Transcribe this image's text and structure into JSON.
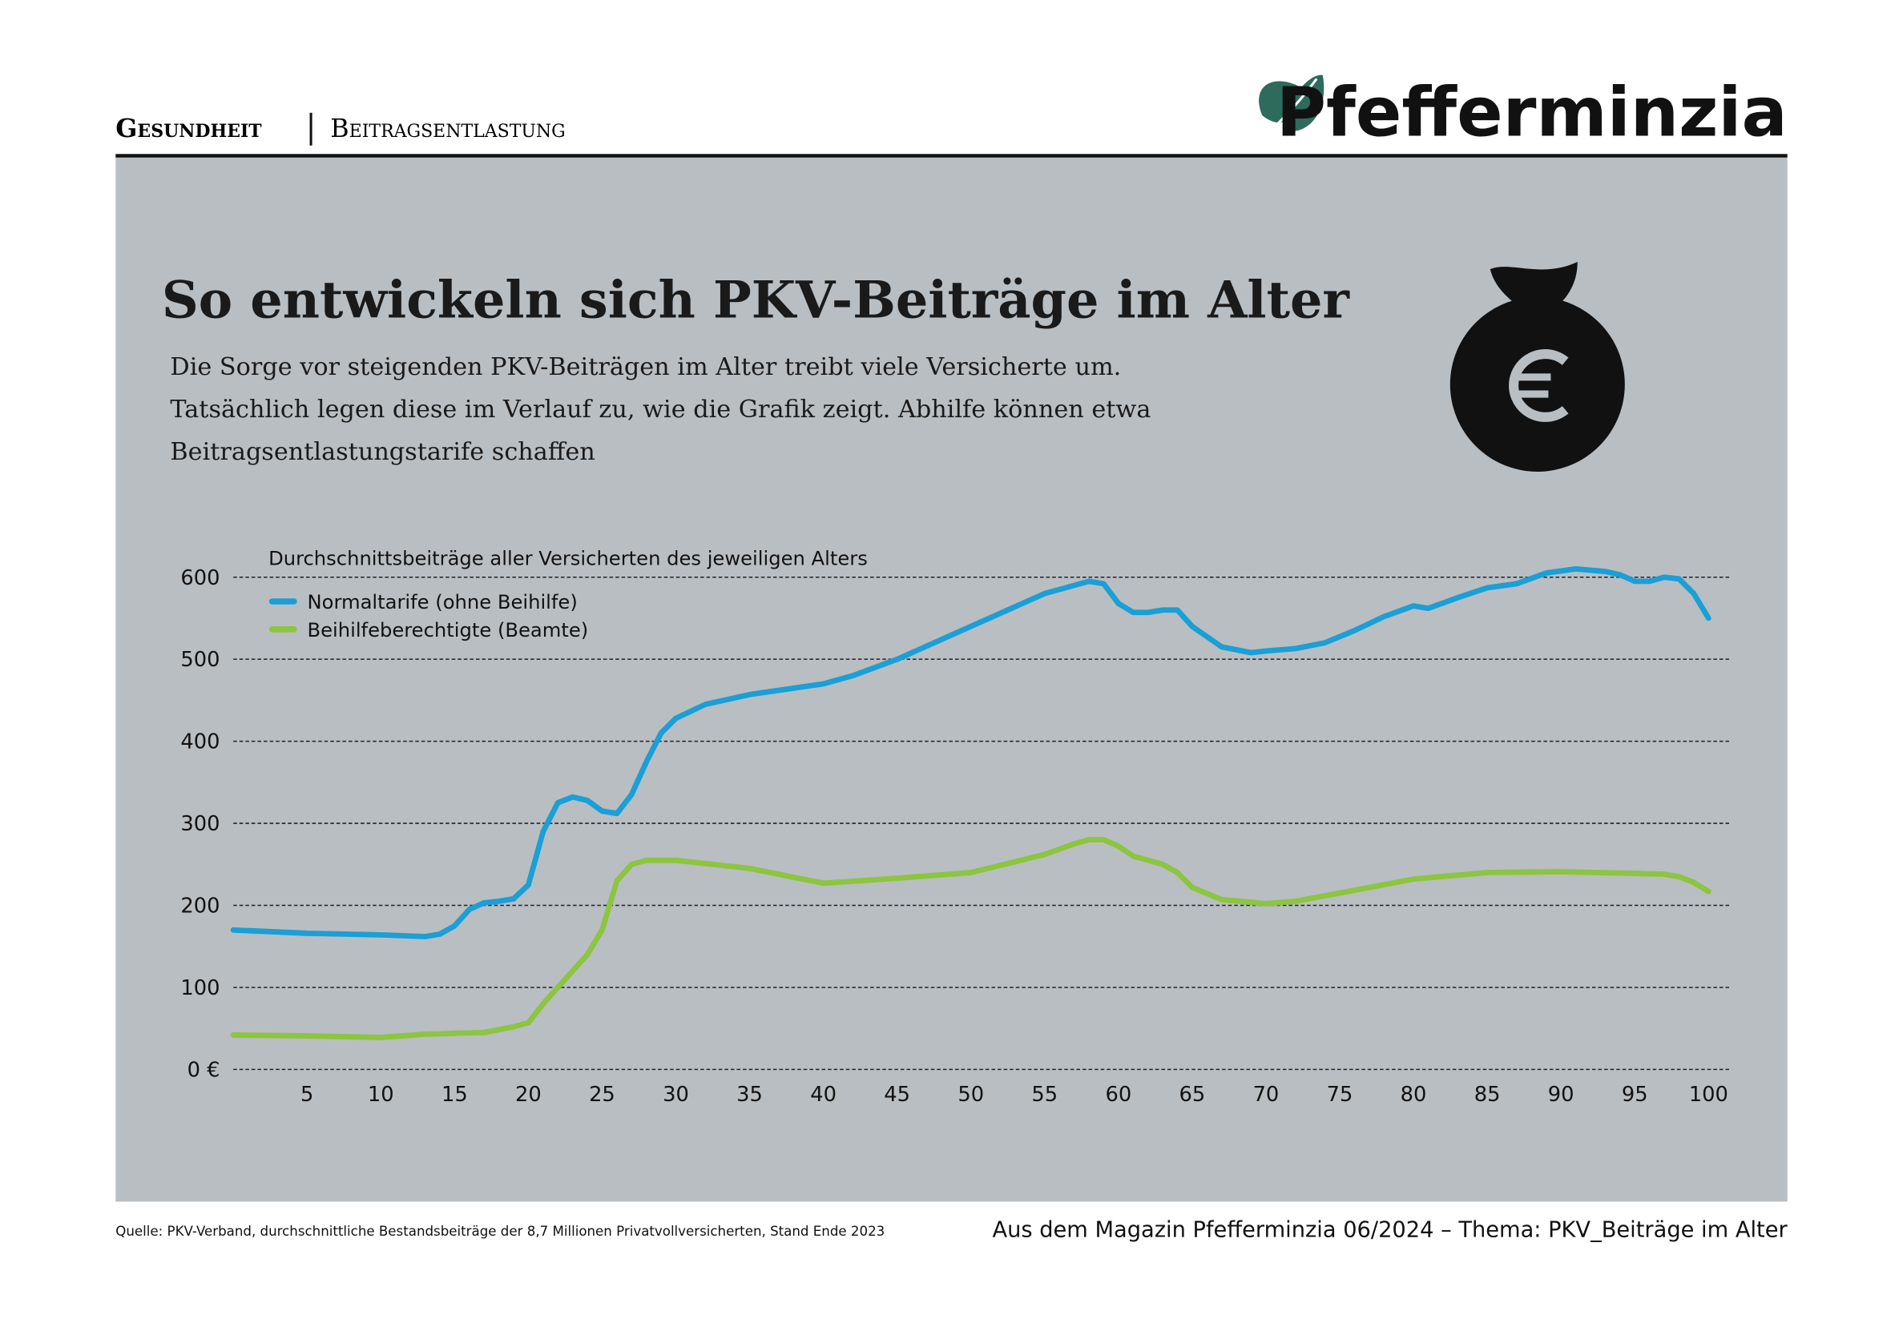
{
  "header": {
    "section": "Gesundheit",
    "topic": "Beitragsentlastung",
    "logo": "Pfefferminzia"
  },
  "chart_data": {
    "type": "line",
    "title": "So entwickeln sich PKV-Beiträge im Alter",
    "subtitle": [
      "Die Sorge vor steigenden PKV-Beiträgen im Alter treibt viele Versicherte um.",
      "Tatsächlich legen diese im Verlauf zu, wie die Grafik zeigt. Abhilfe können etwa",
      "Beitragsentlastungstarife schaffen"
    ],
    "y_label": "Durchschnittsbeiträge aller Versicherten des jeweiligen Alters",
    "xlim": [
      0,
      100
    ],
    "xticks": [
      5,
      10,
      15,
      20,
      25,
      30,
      35,
      40,
      45,
      50,
      55,
      60,
      65,
      70,
      75,
      80,
      85,
      90,
      95,
      100
    ],
    "ylim": [
      0,
      600
    ],
    "yticks": [
      {
        "value": 0,
        "label": "0 €"
      },
      100,
      200,
      300,
      400,
      500,
      600
    ],
    "grid": true,
    "legend": "upper left",
    "series": [
      {
        "name": "Normaltarife (ohne Beihilfe)",
        "color": "#1a9fd6",
        "x": [
          0,
          5,
          10,
          13,
          14,
          15,
          16,
          17,
          18,
          19,
          20,
          21,
          22,
          23,
          24,
          25,
          26,
          27,
          28,
          29,
          30,
          32,
          35,
          40,
          42,
          45,
          50,
          55,
          58,
          59,
          60,
          61,
          62,
          63,
          64,
          65,
          67,
          69,
          70,
          72,
          74,
          76,
          78,
          80,
          81,
          83,
          85,
          87,
          89,
          91,
          93,
          94,
          95,
          96,
          97,
          98,
          99,
          100
        ],
        "values": [
          170,
          166,
          164,
          162,
          165,
          175,
          195,
          203,
          205,
          208,
          225,
          290,
          325,
          332,
          328,
          315,
          312,
          335,
          375,
          410,
          428,
          445,
          457,
          470,
          480,
          500,
          540,
          580,
          595,
          592,
          568,
          557,
          557,
          560,
          560,
          540,
          515,
          508,
          510,
          513,
          520,
          535,
          552,
          565,
          562,
          575,
          587,
          592,
          605,
          610,
          607,
          603,
          595,
          595,
          600,
          598,
          580,
          550
        ]
      },
      {
        "name": "Beihilfeberechtigte (Beamte)",
        "color": "#8cc53f",
        "x": [
          0,
          5,
          10,
          13,
          17,
          19,
          20,
          21,
          22,
          23,
          24,
          25,
          26,
          27,
          28,
          30,
          35,
          40,
          45,
          50,
          55,
          57,
          58,
          59,
          60,
          61,
          63,
          64,
          65,
          67,
          70,
          72,
          75,
          80,
          85,
          90,
          95,
          97,
          98,
          99,
          100
        ],
        "values": [
          42,
          41,
          39,
          43,
          45,
          52,
          57,
          80,
          100,
          120,
          140,
          170,
          230,
          250,
          255,
          255,
          245,
          227,
          233,
          240,
          262,
          275,
          280,
          280,
          272,
          260,
          250,
          240,
          222,
          207,
          202,
          205,
          215,
          232,
          240,
          241,
          239,
          238,
          235,
          228,
          217
        ]
      }
    ]
  },
  "footer": {
    "source": "Quelle: PKV-Verband, durchschnittliche Bestandsbeiträge der 8,7 Millionen Privatvollversicherten, Stand Ende 2023",
    "credit": "Aus dem Magazin Pfefferminzia 06/2024 – Thema: PKV_Beiträge im Alter"
  }
}
